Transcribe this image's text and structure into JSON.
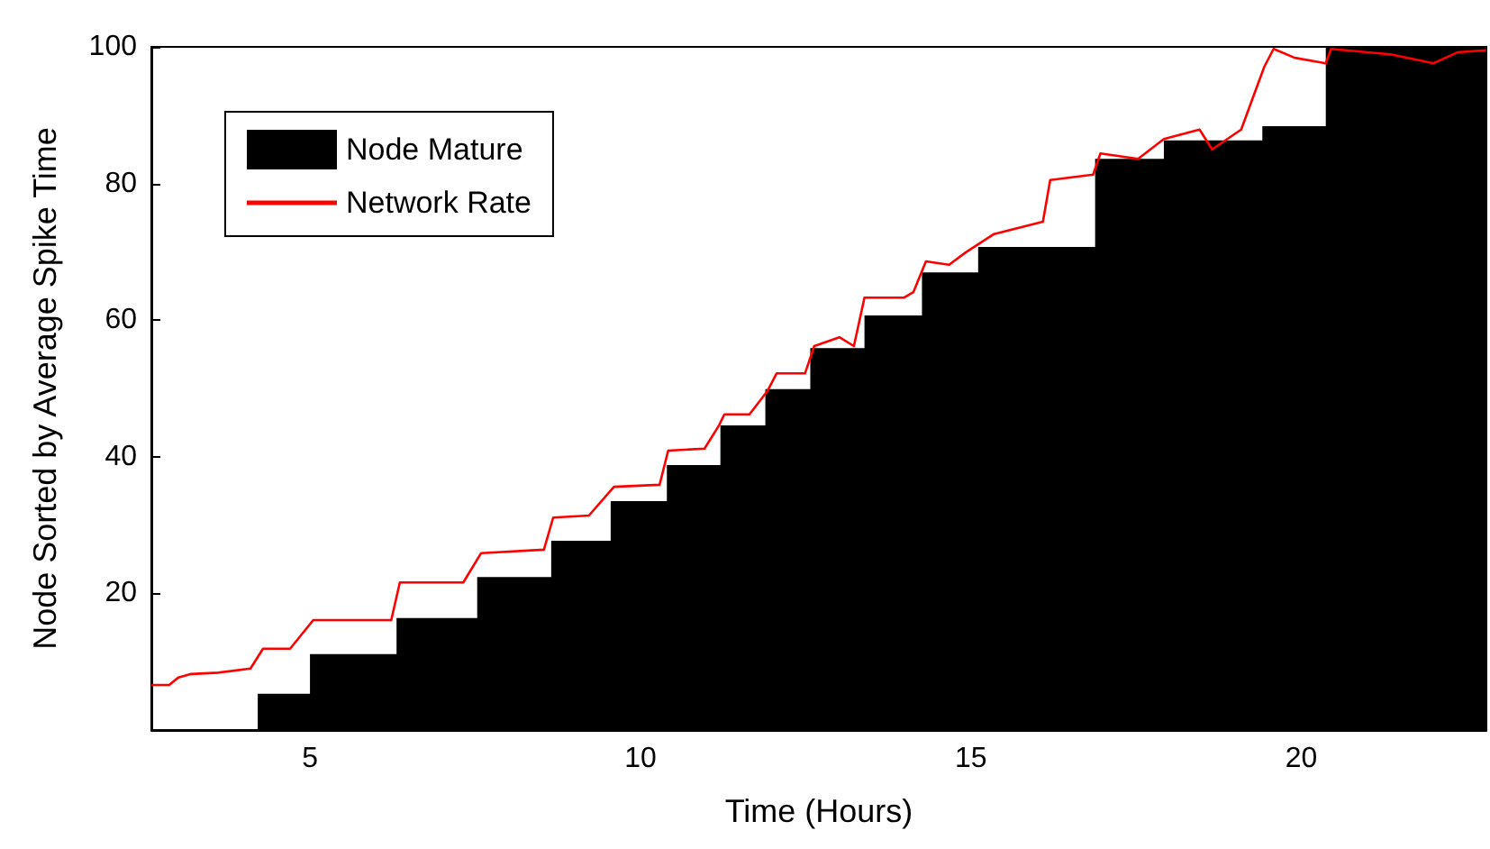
{
  "chart_data": {
    "type": "line",
    "xlabel": "Time (Hours)",
    "ylabel": "Node Sorted by Average Spike Time",
    "xlim": [
      2.6,
      22.8
    ],
    "xticks": [
      5,
      10,
      15,
      20
    ],
    "ylim": [
      0,
      100
    ],
    "yticks": [
      20,
      40,
      60,
      80,
      100
    ],
    "grid": false,
    "legend": "top left",
    "marker": "none",
    "line_style": "solid",
    "series": [
      {
        "name": "Node Mature",
        "type": "area",
        "color": "#000000",
        "x": [
          4.21,
          4.21,
          5.0,
          5.0,
          6.31,
          6.31,
          7.53,
          7.53,
          8.65,
          8.65,
          9.55,
          9.55,
          10.4,
          10.4,
          11.21,
          11.21,
          11.89,
          11.89,
          12.57,
          12.57,
          13.39,
          13.39,
          14.26,
          14.26,
          15.11,
          15.11,
          16.88,
          16.88,
          17.92,
          17.92,
          19.41,
          19.41,
          20.37,
          20.37,
          22.8
        ],
        "values": [
          0,
          5.3,
          5.3,
          11.1,
          11.1,
          16.4,
          16.4,
          22.4,
          22.4,
          27.7,
          27.7,
          33.5,
          33.5,
          38.8,
          38.8,
          44.6,
          44.6,
          49.9,
          49.9,
          55.9,
          55.9,
          60.7,
          60.7,
          67.0,
          67.0,
          70.7,
          70.7,
          83.6,
          83.6,
          86.3,
          86.3,
          88.4,
          88.4,
          100,
          100
        ]
      },
      {
        "name": "Network Rate",
        "color": "#ff0000",
        "x": [
          2.6,
          2.87,
          3.01,
          3.2,
          3.61,
          4.1,
          4.29,
          4.7,
          5.05,
          6.23,
          6.36,
          7.32,
          7.59,
          8.54,
          8.68,
          9.22,
          9.6,
          10.29,
          10.42,
          10.97,
          11.19,
          11.27,
          11.65,
          11.92,
          12.06,
          12.49,
          12.63,
          13.01,
          13.23,
          13.39,
          13.99,
          14.13,
          14.32,
          14.67,
          14.92,
          15.35,
          16.09,
          16.2,
          16.85,
          16.96,
          17.53,
          17.92,
          18.46,
          18.65,
          19.09,
          19.28,
          19.44,
          19.58,
          19.9,
          20.37,
          20.45,
          21.35,
          22.0,
          22.36,
          22.79
        ],
        "values": [
          6.6,
          6.6,
          7.7,
          8.2,
          8.4,
          9.0,
          11.9,
          11.9,
          16.1,
          16.1,
          21.6,
          21.6,
          25.9,
          26.4,
          31.1,
          31.4,
          35.6,
          35.9,
          40.9,
          41.2,
          44.6,
          46.2,
          46.2,
          49.6,
          52.2,
          52.2,
          56.2,
          57.5,
          56.2,
          63.3,
          63.3,
          64.1,
          68.6,
          68.1,
          69.9,
          72.6,
          74.4,
          80.5,
          81.3,
          84.4,
          83.6,
          86.5,
          87.9,
          85.0,
          87.9,
          92.9,
          97.1,
          99.7,
          98.4,
          97.6,
          99.7,
          98.9,
          97.6,
          99.2,
          99.5
        ]
      }
    ]
  }
}
